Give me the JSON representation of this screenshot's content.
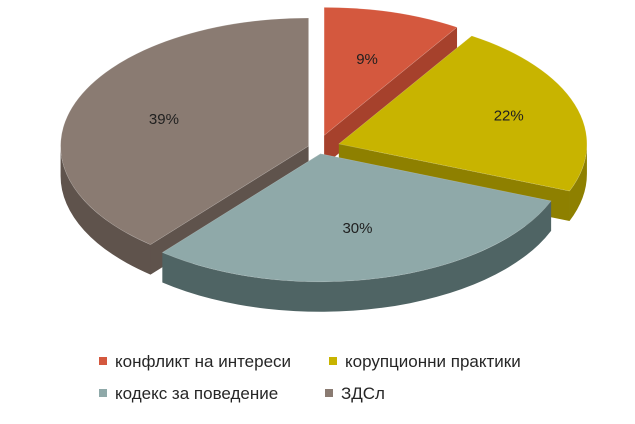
{
  "chart_data": {
    "type": "pie",
    "three_d": true,
    "exploded": true,
    "categories": [
      "конфликт на интереси",
      "корупционни практики",
      "кодекс за поведение",
      "ЗДСл"
    ],
    "values": [
      9,
      22,
      30,
      39
    ],
    "labels": [
      "9%",
      "22%",
      "30%",
      "39%"
    ],
    "colors": [
      "#d4583e",
      "#c8b400",
      "#8fa9a9",
      "#8a7b72"
    ],
    "side_colors": [
      "#a6412c",
      "#8e8000",
      "#4f6464",
      "#5f534c"
    ],
    "legend": {
      "placement": "bottom",
      "rows": [
        [
          {
            "index": 0,
            "label": "конфликт на интереси"
          },
          {
            "index": 1,
            "label": "корупционни практики"
          }
        ],
        [
          {
            "index": 2,
            "label": "кодекс за поведение"
          },
          {
            "index": 3,
            "label": "ЗДСл"
          }
        ]
      ]
    }
  }
}
